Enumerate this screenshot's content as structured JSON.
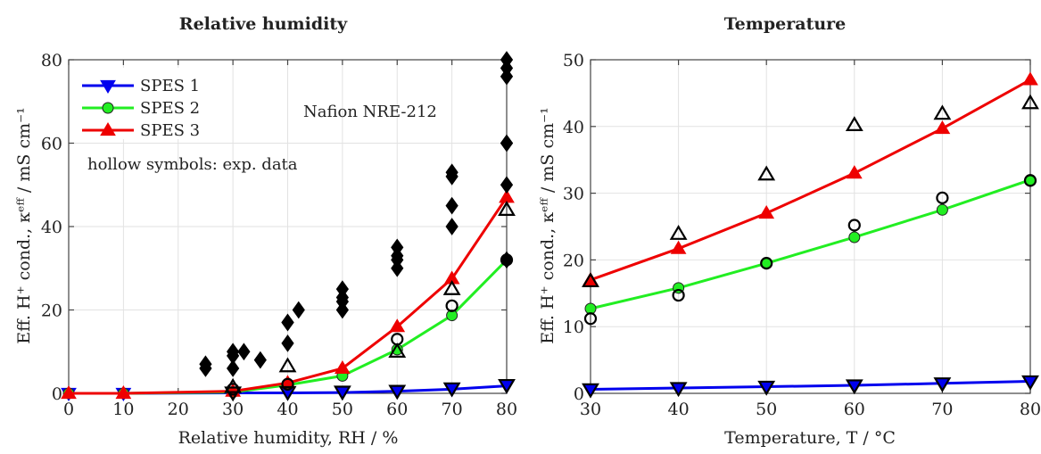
{
  "colors": {
    "SPES 1": "#0000ee",
    "SPES 2": "#22ee22",
    "SPES 3": "#ee0000",
    "nafion": "#000000",
    "grid": "#e2e2e2",
    "axis": "#444444"
  },
  "chart_data": [
    {
      "id": "rh",
      "type": "line",
      "title": "Relative humidity",
      "xlabel": "Relative humidity, RH / %",
      "ylabel": "Eff. H⁺ cond., κᵉᶠᶠ / mS cm⁻¹",
      "xlim": [
        0,
        80
      ],
      "ylim": [
        0,
        80
      ],
      "xticks": [
        0,
        10,
        20,
        30,
        40,
        50,
        60,
        70,
        80
      ],
      "yticks": [
        0,
        20,
        40,
        60,
        80
      ],
      "grid": true,
      "legend_position": "top-left",
      "legend": [
        {
          "name": "SPES 1",
          "marker": "triangle-down"
        },
        {
          "name": "SPES 2",
          "marker": "circle"
        },
        {
          "name": "SPES 3",
          "marker": "triangle-up"
        }
      ],
      "annotations": [
        "hollow symbols: exp. data",
        "Nafion NRE-212"
      ],
      "series": [
        {
          "name": "SPES 1",
          "marker": "triangle-down",
          "x": [
            0,
            10,
            30,
            40,
            50,
            60,
            70,
            80
          ],
          "y": [
            0,
            0,
            0.1,
            0.1,
            0.2,
            0.5,
            1.0,
            1.8
          ]
        },
        {
          "name": "SPES 2",
          "marker": "circle",
          "x": [
            0,
            10,
            30,
            40,
            50,
            60,
            70,
            80
          ],
          "y": [
            0,
            0,
            0.3,
            2.0,
            4.2,
            10.5,
            18.7,
            32.0
          ]
        },
        {
          "name": "SPES 3",
          "marker": "triangle-up",
          "x": [
            0,
            10,
            30,
            40,
            50,
            60,
            70,
            80
          ],
          "y": [
            0,
            0,
            0.5,
            2.5,
            6.0,
            16.0,
            27.5,
            47.0
          ]
        }
      ],
      "experimental": [
        {
          "series": "SPES 1",
          "marker": "triangle-down-hollow",
          "x": [
            30,
            40,
            50,
            60,
            70,
            80
          ],
          "y": [
            0.2,
            0.3,
            0.4,
            0.6,
            1.2,
            2.0
          ]
        },
        {
          "series": "SPES 2",
          "marker": "circle-hollow",
          "x": [
            30,
            40,
            60,
            70,
            80
          ],
          "y": [
            1.0,
            2.2,
            13.0,
            21.0,
            32.0
          ]
        },
        {
          "series": "SPES 3",
          "marker": "triangle-up-hollow",
          "x": [
            30,
            40,
            60,
            70,
            80
          ],
          "y": [
            1.5,
            6.5,
            10.0,
            25.0,
            44.0
          ]
        },
        {
          "series": "Nafion NRE-212",
          "marker": "diamond",
          "x": [
            25,
            25,
            30,
            30,
            30,
            32,
            35,
            40,
            40,
            40,
            42,
            50,
            50,
            50,
            50,
            60,
            60,
            60,
            60,
            70,
            70,
            70,
            70,
            80,
            80,
            80,
            80,
            80,
            80,
            80
          ],
          "y": [
            6,
            7,
            10,
            9,
            6,
            10,
            8,
            17,
            12,
            17,
            20,
            20,
            22,
            23,
            25,
            35,
            33,
            32,
            30,
            52,
            53,
            45,
            40,
            80,
            78,
            76,
            60,
            60,
            50,
            32
          ]
        }
      ]
    },
    {
      "id": "temp",
      "type": "line",
      "title": "Temperature",
      "xlabel": "Temperature, T / °C",
      "ylabel": "Eff. H⁺ cond., κᵉᶠᶠ / mS cm⁻¹",
      "xlim": [
        30,
        80
      ],
      "ylim": [
        0,
        50
      ],
      "xticks": [
        30,
        40,
        50,
        60,
        70,
        80
      ],
      "yticks": [
        0,
        10,
        20,
        30,
        40,
        50
      ],
      "grid": true,
      "series": [
        {
          "name": "SPES 1",
          "marker": "triangle-down",
          "x": [
            30,
            40,
            50,
            60,
            70,
            80
          ],
          "y": [
            0.6,
            0.8,
            1.0,
            1.2,
            1.5,
            1.8
          ]
        },
        {
          "name": "SPES 2",
          "marker": "circle",
          "x": [
            30,
            40,
            50,
            60,
            70,
            80
          ],
          "y": [
            12.7,
            15.8,
            19.5,
            23.4,
            27.5,
            32.0
          ]
        },
        {
          "name": "SPES 3",
          "marker": "triangle-up",
          "x": [
            30,
            40,
            50,
            60,
            70,
            80
          ],
          "y": [
            17.0,
            21.7,
            27.0,
            33.0,
            39.7,
            47.0
          ]
        }
      ],
      "experimental": [
        {
          "series": "SPES 2",
          "marker": "circle-hollow",
          "x": [
            30,
            40,
            50,
            60,
            70,
            80
          ],
          "y": [
            11.2,
            14.7,
            19.5,
            25.2,
            29.3,
            31.9
          ]
        },
        {
          "series": "SPES 3",
          "marker": "triangle-up-hollow",
          "x": [
            30,
            40,
            50,
            60,
            70,
            80
          ],
          "y": [
            16.8,
            23.9,
            32.8,
            40.2,
            41.9,
            43.5
          ]
        },
        {
          "series": "SPES 1",
          "marker": "triangle-down-hollow",
          "x": [
            30,
            40,
            50,
            60,
            70,
            80
          ],
          "y": [
            0.6,
            0.8,
            1.0,
            1.2,
            1.5,
            1.8
          ]
        }
      ]
    }
  ]
}
